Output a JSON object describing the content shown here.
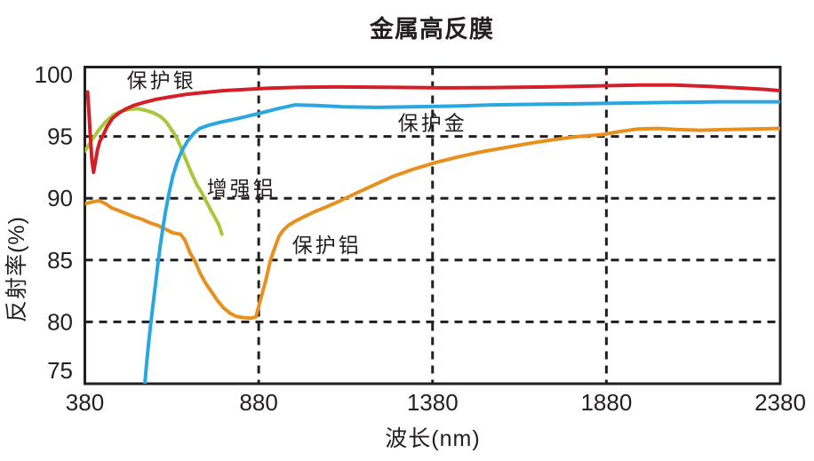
{
  "title": "金属高反膜",
  "colors": {
    "axis": "#231f20",
    "background": "#ffffff",
    "protected_silver": "#d31f28",
    "protected_gold": "#2aa7df",
    "enhanced_aluminum": "#a8c83c",
    "protected_aluminum": "#e8901e"
  },
  "chart_data": {
    "type": "line",
    "title": "金属高反膜",
    "xlabel": "波长(nm)",
    "ylabel": "反射率(%)",
    "xlim": [
      380,
      2380
    ],
    "ylim": [
      75,
      100
    ],
    "x_ticks": [
      380,
      880,
      1380,
      1880,
      2380
    ],
    "y_ticks": [
      {
        "label": "100",
        "value": 100,
        "label_dy": 0
      },
      {
        "label": "95",
        "value": 95,
        "label_dy": 0
      },
      {
        "label": "90",
        "value": 90,
        "label_dy": 0
      },
      {
        "label": "85",
        "value": 85,
        "label_dy": 0
      },
      {
        "label": "80",
        "value": 80,
        "label_dy": 0
      },
      {
        "label": "75",
        "value": 75,
        "label_dy": -15
      }
    ],
    "x_gridlines": [
      880,
      1380,
      1880
    ],
    "y_gridlines": [
      95,
      90,
      85,
      80
    ],
    "grid_style": "dashed",
    "legend_position": "inline-labels",
    "series": [
      {
        "key": "protected-aluminum",
        "name": "保护铝",
        "color": "#e8901e",
        "points": [
          [
            380,
            89.55
          ],
          [
            400,
            89.7
          ],
          [
            422,
            89.8
          ],
          [
            440,
            89.55
          ],
          [
            458,
            89.2
          ],
          [
            478,
            89.0
          ],
          [
            500,
            88.75
          ],
          [
            522,
            88.5
          ],
          [
            545,
            88.3
          ],
          [
            568,
            88.0
          ],
          [
            590,
            87.8
          ],
          [
            612,
            87.5
          ],
          [
            633,
            87.2
          ],
          [
            655,
            87.1
          ],
          [
            668,
            86.6
          ],
          [
            682,
            85.6
          ],
          [
            697,
            84.9
          ],
          [
            712,
            83.9
          ],
          [
            728,
            83.1
          ],
          [
            745,
            82.4
          ],
          [
            762,
            81.7
          ],
          [
            780,
            81.1
          ],
          [
            798,
            80.7
          ],
          [
            815,
            80.45
          ],
          [
            835,
            80.35
          ],
          [
            858,
            80.3
          ],
          [
            872,
            80.4
          ],
          [
            886,
            81.9
          ],
          [
            900,
            83.3
          ],
          [
            913,
            84.9
          ],
          [
            925,
            85.9
          ],
          [
            938,
            86.9
          ],
          [
            950,
            87.4
          ],
          [
            965,
            87.8
          ],
          [
            985,
            88.15
          ],
          [
            1010,
            88.5
          ],
          [
            1040,
            88.9
          ],
          [
            1075,
            89.3
          ],
          [
            1115,
            89.8
          ],
          [
            1160,
            90.4
          ],
          [
            1210,
            91.05
          ],
          [
            1265,
            91.75
          ],
          [
            1325,
            92.35
          ],
          [
            1390,
            92.9
          ],
          [
            1455,
            93.35
          ],
          [
            1520,
            93.75
          ],
          [
            1590,
            94.1
          ],
          [
            1660,
            94.45
          ],
          [
            1730,
            94.75
          ],
          [
            1800,
            95.0
          ],
          [
            1870,
            95.15
          ],
          [
            1920,
            95.4
          ],
          [
            1970,
            95.6
          ],
          [
            2030,
            95.65
          ],
          [
            2090,
            95.55
          ],
          [
            2150,
            95.5
          ],
          [
            2220,
            95.55
          ],
          [
            2300,
            95.6
          ],
          [
            2380,
            95.65
          ]
        ]
      },
      {
        "key": "enhanced-aluminum",
        "name": "增强铝",
        "color": "#a8c83c",
        "points": [
          [
            380,
            93.8
          ],
          [
            398,
            94.6
          ],
          [
            418,
            95.45
          ],
          [
            440,
            96.2
          ],
          [
            462,
            96.75
          ],
          [
            485,
            97.05
          ],
          [
            508,
            97.2
          ],
          [
            532,
            97.25
          ],
          [
            556,
            97.1
          ],
          [
            578,
            96.9
          ],
          [
            598,
            96.6
          ],
          [
            615,
            96.15
          ],
          [
            629,
            95.55
          ],
          [
            643,
            94.95
          ],
          [
            658,
            94.0
          ],
          [
            673,
            92.95
          ],
          [
            688,
            91.95
          ],
          [
            703,
            91.05
          ],
          [
            717,
            90.4
          ],
          [
            730,
            89.7
          ],
          [
            743,
            89.0
          ],
          [
            756,
            88.35
          ],
          [
            766,
            87.8
          ],
          [
            774,
            87.1
          ]
        ]
      },
      {
        "key": "protected-gold",
        "name": "保护金",
        "color": "#2aa7df",
        "points": [
          [
            548,
            73.4
          ],
          [
            552,
            74.8
          ],
          [
            557,
            76.5
          ],
          [
            563,
            78.2
          ],
          [
            569,
            79.7
          ],
          [
            576,
            81.4
          ],
          [
            583,
            83.0
          ],
          [
            590,
            84.7
          ],
          [
            597,
            86.2
          ],
          [
            605,
            87.7
          ],
          [
            613,
            89.1
          ],
          [
            622,
            90.4
          ],
          [
            633,
            91.8
          ],
          [
            645,
            92.9
          ],
          [
            659,
            93.85
          ],
          [
            675,
            94.6
          ],
          [
            693,
            95.25
          ],
          [
            710,
            95.65
          ],
          [
            735,
            95.9
          ],
          [
            770,
            96.15
          ],
          [
            820,
            96.45
          ],
          [
            880,
            96.85
          ],
          [
            935,
            97.25
          ],
          [
            985,
            97.55
          ],
          [
            1045,
            97.5
          ],
          [
            1120,
            97.4
          ],
          [
            1220,
            97.35
          ],
          [
            1320,
            97.4
          ],
          [
            1430,
            97.45
          ],
          [
            1550,
            97.55
          ],
          [
            1680,
            97.6
          ],
          [
            1810,
            97.65
          ],
          [
            1940,
            97.7
          ],
          [
            2070,
            97.75
          ],
          [
            2200,
            97.8
          ],
          [
            2380,
            97.8
          ]
        ]
      },
      {
        "key": "protected-silver",
        "name": "保护银",
        "color": "#d31f28",
        "points": [
          [
            388,
            98.6
          ],
          [
            391,
            97.3
          ],
          [
            395,
            95.3
          ],
          [
            400,
            93.2
          ],
          [
            405,
            92.1
          ],
          [
            410,
            92.9
          ],
          [
            416,
            93.9
          ],
          [
            423,
            94.6
          ],
          [
            432,
            95.05
          ],
          [
            444,
            95.8
          ],
          [
            459,
            96.45
          ],
          [
            476,
            96.85
          ],
          [
            496,
            97.2
          ],
          [
            520,
            97.5
          ],
          [
            550,
            97.75
          ],
          [
            585,
            98.0
          ],
          [
            625,
            98.2
          ],
          [
            670,
            98.4
          ],
          [
            720,
            98.55
          ],
          [
            776,
            98.7
          ],
          [
            840,
            98.8
          ],
          [
            910,
            98.9
          ],
          [
            1000,
            98.97
          ],
          [
            1100,
            99.0
          ],
          [
            1250,
            98.97
          ],
          [
            1400,
            98.93
          ],
          [
            1550,
            98.95
          ],
          [
            1700,
            99.0
          ],
          [
            1850,
            99.08
          ],
          [
            1975,
            99.15
          ],
          [
            2075,
            99.15
          ],
          [
            2175,
            99.05
          ],
          [
            2275,
            98.9
          ],
          [
            2340,
            98.8
          ],
          [
            2380,
            98.7
          ]
        ]
      }
    ],
    "annotations": [
      {
        "key": "protected-silver",
        "text": "保护银",
        "nm": 600,
        "value": 99.55
      },
      {
        "key": "protected-gold",
        "text": "保护金",
        "nm": 1380,
        "value": 96.1
      },
      {
        "key": "enhanced-aluminum",
        "text": "增强铝",
        "nm": 830,
        "value": 90.8
      },
      {
        "key": "protected-aluminum",
        "text": "保护铝",
        "nm": 1076,
        "value": 86.2
      }
    ]
  }
}
